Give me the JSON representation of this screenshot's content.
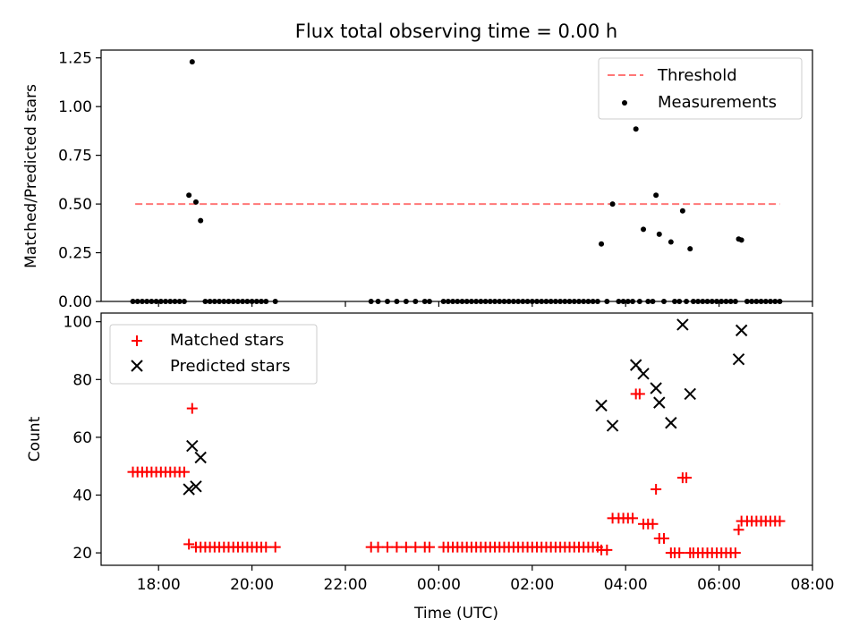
{
  "chart_data": [
    {
      "type": "scatter",
      "title": "Flux total observing time = 0.00 h",
      "xlabel": "",
      "ylabel": "Matched/Predicted stars",
      "ylim": [
        0,
        1.29
      ],
      "yticks": [
        "0.00",
        "0.25",
        "0.50",
        "0.75",
        "1.00",
        "1.25"
      ],
      "legend_position": "top-right",
      "grid": false,
      "threshold": {
        "name": "Threshold",
        "value": 0.5,
        "x_start": 17.5,
        "x_end": 31.3,
        "color": "#ff7777"
      },
      "series": [
        {
          "name": "Measurements",
          "color": "#000000",
          "points": [
            [
              17.45,
              0
            ],
            [
              17.55,
              0
            ],
            [
              17.65,
              0
            ],
            [
              17.75,
              0
            ],
            [
              17.85,
              0
            ],
            [
              17.95,
              0
            ],
            [
              18.05,
              0
            ],
            [
              18.15,
              0
            ],
            [
              18.25,
              0
            ],
            [
              18.35,
              0
            ],
            [
              18.45,
              0
            ],
            [
              18.55,
              0
            ],
            [
              18.65,
              0.545
            ],
            [
              18.72,
              1.23
            ],
            [
              18.8,
              0.51
            ],
            [
              18.9,
              0.415
            ],
            [
              19.0,
              0
            ],
            [
              19.1,
              0
            ],
            [
              19.2,
              0
            ],
            [
              19.3,
              0
            ],
            [
              19.4,
              0
            ],
            [
              19.5,
              0
            ],
            [
              19.6,
              0
            ],
            [
              19.7,
              0
            ],
            [
              19.8,
              0
            ],
            [
              19.9,
              0
            ],
            [
              20.0,
              0
            ],
            [
              20.1,
              0
            ],
            [
              20.2,
              0
            ],
            [
              20.3,
              0
            ],
            [
              20.5,
              0
            ],
            [
              22.55,
              0
            ],
            [
              22.7,
              0
            ],
            [
              22.9,
              0
            ],
            [
              23.1,
              0
            ],
            [
              23.3,
              0
            ],
            [
              23.5,
              0
            ],
            [
              23.7,
              0
            ],
            [
              23.8,
              0
            ],
            [
              24.1,
              0
            ],
            [
              24.2,
              0
            ],
            [
              24.3,
              0
            ],
            [
              24.4,
              0
            ],
            [
              24.5,
              0
            ],
            [
              24.6,
              0
            ],
            [
              24.7,
              0
            ],
            [
              24.8,
              0
            ],
            [
              24.9,
              0
            ],
            [
              25.0,
              0
            ],
            [
              25.1,
              0
            ],
            [
              25.2,
              0
            ],
            [
              25.3,
              0
            ],
            [
              25.4,
              0
            ],
            [
              25.5,
              0
            ],
            [
              25.6,
              0
            ],
            [
              25.7,
              0
            ],
            [
              25.8,
              0
            ],
            [
              25.9,
              0
            ],
            [
              26.0,
              0
            ],
            [
              26.1,
              0
            ],
            [
              26.2,
              0
            ],
            [
              26.3,
              0
            ],
            [
              26.4,
              0
            ],
            [
              26.5,
              0
            ],
            [
              26.6,
              0
            ],
            [
              26.7,
              0
            ],
            [
              26.8,
              0
            ],
            [
              26.9,
              0
            ],
            [
              27.0,
              0
            ],
            [
              27.1,
              0
            ],
            [
              27.2,
              0
            ],
            [
              27.3,
              0
            ],
            [
              27.4,
              0
            ],
            [
              27.48,
              0.295
            ],
            [
              27.6,
              0
            ],
            [
              27.72,
              0.5
            ],
            [
              27.85,
              0
            ],
            [
              27.95,
              0
            ],
            [
              28.05,
              0
            ],
            [
              28.15,
              0
            ],
            [
              28.22,
              0.885
            ],
            [
              28.3,
              0
            ],
            [
              28.38,
              0.37
            ],
            [
              28.48,
              0
            ],
            [
              28.58,
              0
            ],
            [
              28.65,
              0.545
            ],
            [
              28.72,
              0.345
            ],
            [
              28.82,
              0
            ],
            [
              28.97,
              0.305
            ],
            [
              29.05,
              0
            ],
            [
              29.15,
              0
            ],
            [
              29.22,
              0.465
            ],
            [
              29.3,
              0
            ],
            [
              29.38,
              0.27
            ],
            [
              29.45,
              0
            ],
            [
              29.55,
              0
            ],
            [
              29.65,
              0
            ],
            [
              29.75,
              0
            ],
            [
              29.85,
              0
            ],
            [
              29.95,
              0
            ],
            [
              30.05,
              0
            ],
            [
              30.15,
              0
            ],
            [
              30.25,
              0
            ],
            [
              30.35,
              0
            ],
            [
              30.42,
              0.32
            ],
            [
              30.48,
              0.315
            ],
            [
              30.6,
              0
            ],
            [
              30.7,
              0
            ],
            [
              30.8,
              0
            ],
            [
              30.9,
              0
            ],
            [
              31.0,
              0
            ],
            [
              31.1,
              0
            ],
            [
              31.2,
              0
            ],
            [
              31.3,
              0
            ]
          ]
        }
      ]
    },
    {
      "type": "scatter",
      "title": "",
      "xlabel": "Time (UTC)",
      "ylabel": "Count",
      "xlim": [
        16.77,
        32.0
      ],
      "ylim": [
        15.7,
        103
      ],
      "yticks": [
        "20",
        "40",
        "60",
        "80",
        "100"
      ],
      "xtick_values": [
        18,
        20,
        22,
        24,
        26,
        28,
        30,
        32
      ],
      "xtick_labels": [
        "18:00",
        "20:00",
        "22:00",
        "00:00",
        "02:00",
        "04:00",
        "06:00",
        "08:00"
      ],
      "legend_position": "top-left",
      "grid": false,
      "series": [
        {
          "name": "Matched stars",
          "color": "#ff0000",
          "marker": "plus",
          "points": [
            [
              17.45,
              48
            ],
            [
              17.55,
              48
            ],
            [
              17.65,
              48
            ],
            [
              17.75,
              48
            ],
            [
              17.85,
              48
            ],
            [
              17.95,
              48
            ],
            [
              18.05,
              48
            ],
            [
              18.15,
              48
            ],
            [
              18.25,
              48
            ],
            [
              18.35,
              48
            ],
            [
              18.45,
              48
            ],
            [
              18.55,
              48
            ],
            [
              18.65,
              23
            ],
            [
              18.72,
              70
            ],
            [
              18.8,
              22
            ],
            [
              18.9,
              22
            ],
            [
              19.0,
              22
            ],
            [
              19.1,
              22
            ],
            [
              19.2,
              22
            ],
            [
              19.3,
              22
            ],
            [
              19.4,
              22
            ],
            [
              19.5,
              22
            ],
            [
              19.6,
              22
            ],
            [
              19.7,
              22
            ],
            [
              19.8,
              22
            ],
            [
              19.9,
              22
            ],
            [
              20.0,
              22
            ],
            [
              20.1,
              22
            ],
            [
              20.2,
              22
            ],
            [
              20.3,
              22
            ],
            [
              20.5,
              22
            ],
            [
              22.55,
              22
            ],
            [
              22.7,
              22
            ],
            [
              22.9,
              22
            ],
            [
              23.1,
              22
            ],
            [
              23.3,
              22
            ],
            [
              23.5,
              22
            ],
            [
              23.7,
              22
            ],
            [
              23.8,
              22
            ],
            [
              24.1,
              22
            ],
            [
              24.2,
              22
            ],
            [
              24.3,
              22
            ],
            [
              24.4,
              22
            ],
            [
              24.5,
              22
            ],
            [
              24.6,
              22
            ],
            [
              24.7,
              22
            ],
            [
              24.8,
              22
            ],
            [
              24.9,
              22
            ],
            [
              25.0,
              22
            ],
            [
              25.1,
              22
            ],
            [
              25.2,
              22
            ],
            [
              25.3,
              22
            ],
            [
              25.4,
              22
            ],
            [
              25.5,
              22
            ],
            [
              25.6,
              22
            ],
            [
              25.7,
              22
            ],
            [
              25.8,
              22
            ],
            [
              25.9,
              22
            ],
            [
              26.0,
              22
            ],
            [
              26.1,
              22
            ],
            [
              26.2,
              22
            ],
            [
              26.3,
              22
            ],
            [
              26.4,
              22
            ],
            [
              26.5,
              22
            ],
            [
              26.6,
              22
            ],
            [
              26.7,
              22
            ],
            [
              26.8,
              22
            ],
            [
              26.9,
              22
            ],
            [
              27.0,
              22
            ],
            [
              27.1,
              22
            ],
            [
              27.2,
              22
            ],
            [
              27.3,
              22
            ],
            [
              27.4,
              22
            ],
            [
              27.48,
              21
            ],
            [
              27.6,
              21
            ],
            [
              27.72,
              32
            ],
            [
              27.85,
              32
            ],
            [
              27.95,
              32
            ],
            [
              28.05,
              32
            ],
            [
              28.15,
              32
            ],
            [
              28.22,
              75
            ],
            [
              28.3,
              75
            ],
            [
              28.38,
              30
            ],
            [
              28.48,
              30
            ],
            [
              28.58,
              30
            ],
            [
              28.65,
              42
            ],
            [
              28.72,
              25
            ],
            [
              28.82,
              25
            ],
            [
              28.97,
              20
            ],
            [
              29.05,
              20
            ],
            [
              29.15,
              20
            ],
            [
              29.22,
              46
            ],
            [
              29.3,
              46
            ],
            [
              29.38,
              20
            ],
            [
              29.45,
              20
            ],
            [
              29.55,
              20
            ],
            [
              29.65,
              20
            ],
            [
              29.75,
              20
            ],
            [
              29.85,
              20
            ],
            [
              29.95,
              20
            ],
            [
              30.05,
              20
            ],
            [
              30.15,
              20
            ],
            [
              30.25,
              20
            ],
            [
              30.35,
              20
            ],
            [
              30.42,
              28
            ],
            [
              30.48,
              31
            ],
            [
              30.6,
              31
            ],
            [
              30.7,
              31
            ],
            [
              30.8,
              31
            ],
            [
              30.9,
              31
            ],
            [
              31.0,
              31
            ],
            [
              31.1,
              31
            ],
            [
              31.2,
              31
            ],
            [
              31.3,
              31
            ]
          ]
        },
        {
          "name": "Predicted stars",
          "color": "#000000",
          "marker": "x",
          "points": [
            [
              18.65,
              42
            ],
            [
              18.72,
              57
            ],
            [
              18.8,
              43
            ],
            [
              18.9,
              53
            ],
            [
              27.48,
              71
            ],
            [
              27.72,
              64
            ],
            [
              28.22,
              85
            ],
            [
              28.38,
              82
            ],
            [
              28.65,
              77
            ],
            [
              28.72,
              72
            ],
            [
              28.97,
              65
            ],
            [
              29.22,
              99
            ],
            [
              29.38,
              75
            ],
            [
              30.42,
              87
            ],
            [
              30.48,
              97
            ]
          ]
        }
      ]
    }
  ]
}
